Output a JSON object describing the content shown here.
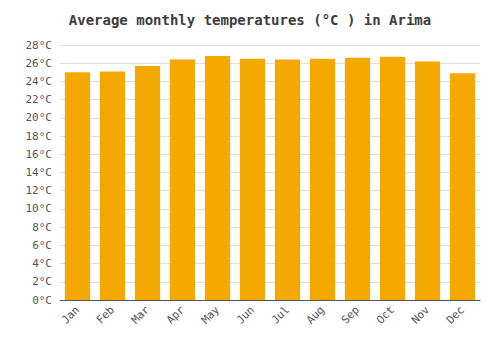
{
  "chart_data": {
    "type": "bar",
    "title": "Average monthly temperatures (°C ) in Arima",
    "categories": [
      "Jan",
      "Feb",
      "Mar",
      "Apr",
      "May",
      "Jun",
      "Jul",
      "Aug",
      "Sep",
      "Oct",
      "Nov",
      "Dec"
    ],
    "values": [
      25.0,
      25.1,
      25.7,
      26.4,
      26.8,
      26.5,
      26.4,
      26.5,
      26.6,
      26.7,
      26.2,
      24.9
    ],
    "color": "#F5A800",
    "ylim": [
      0,
      28
    ],
    "yticks": [
      {
        "value": 0,
        "label": "0°C"
      },
      {
        "value": 2,
        "label": "2°C"
      },
      {
        "value": 4,
        "label": "4°C"
      },
      {
        "value": 6,
        "label": "6°C"
      },
      {
        "value": 8,
        "label": "8°C"
      },
      {
        "value": 10,
        "label": "10°C"
      },
      {
        "value": 12,
        "label": "12°C"
      },
      {
        "value": 14,
        "label": "14°C"
      },
      {
        "value": 16,
        "label": "16°C"
      },
      {
        "value": 18,
        "label": "18°C"
      },
      {
        "value": 20,
        "label": "20°C"
      },
      {
        "value": 22,
        "label": "22°C"
      },
      {
        "value": 24,
        "label": "24°C"
      },
      {
        "value": 26,
        "label": "26°C"
      },
      {
        "value": 28,
        "label": "28°C"
      }
    ],
    "grid": true
  }
}
